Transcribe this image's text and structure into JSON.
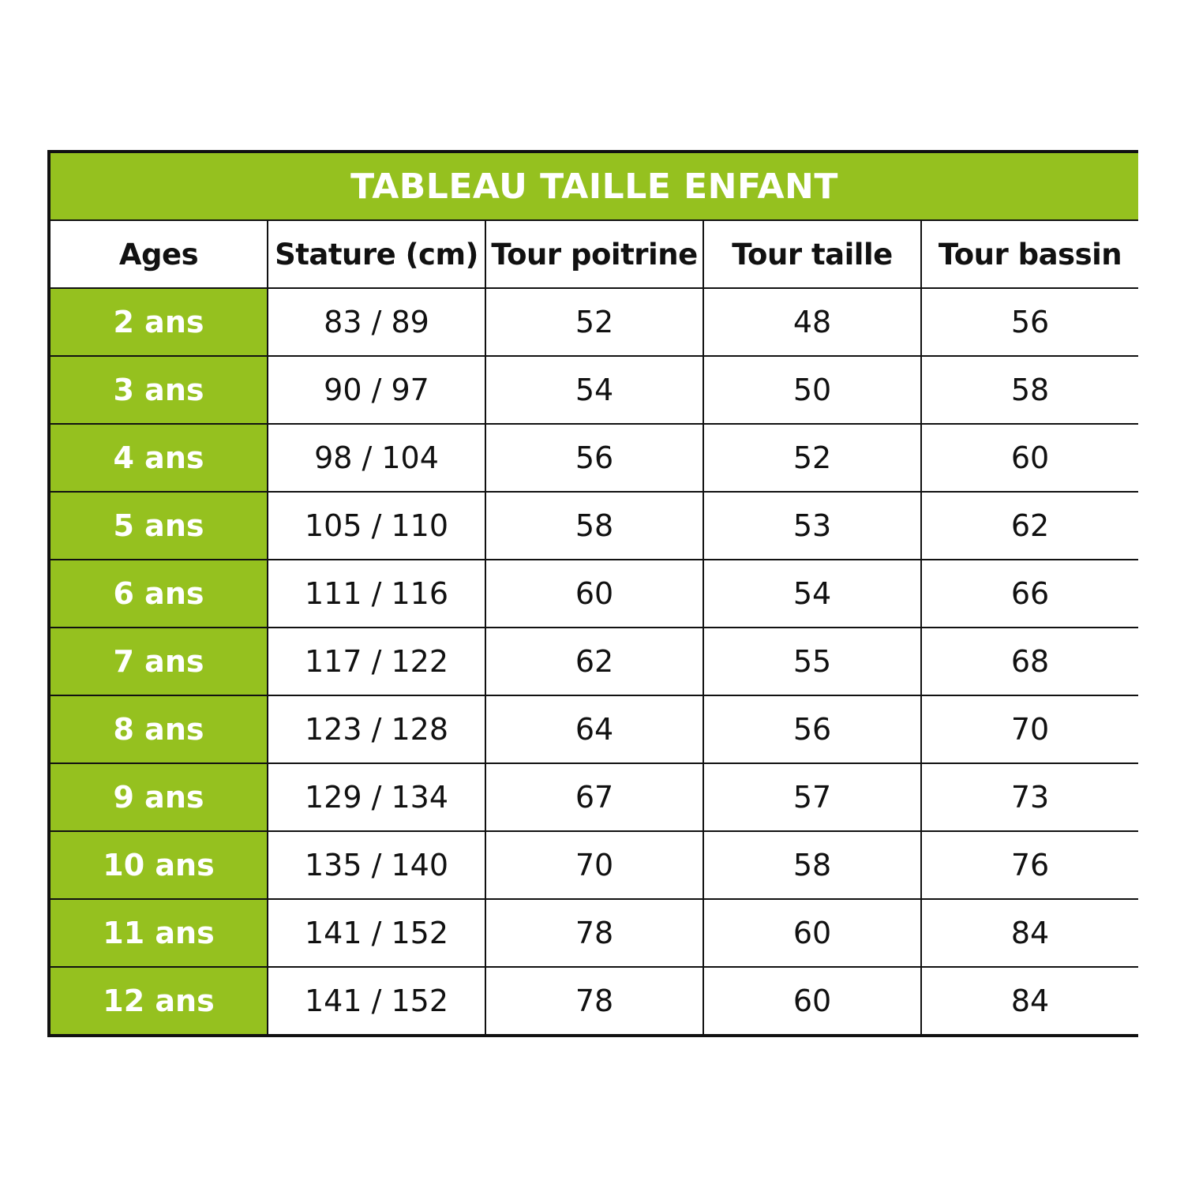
{
  "title": "TABLEAU TAILLE ENFANT",
  "accent_color": "#95c11f",
  "headers": [
    "Ages",
    "Stature (cm)",
    "Tour poitrine",
    "Tour taille",
    "Tour bassin"
  ],
  "rows": [
    [
      "2 ans",
      "83 / 89",
      "52",
      "48",
      "56"
    ],
    [
      "3 ans",
      "90 / 97",
      "54",
      "50",
      "58"
    ],
    [
      "4 ans",
      "98 / 104",
      "56",
      "52",
      "60"
    ],
    [
      "5 ans",
      "105 / 110",
      "58",
      "53",
      "62"
    ],
    [
      "6 ans",
      "111 / 116",
      "60",
      "54",
      "66"
    ],
    [
      "7 ans",
      "117 / 122",
      "62",
      "55",
      "68"
    ],
    [
      "8 ans",
      "123 / 128",
      "64",
      "56",
      "70"
    ],
    [
      "9 ans",
      "129 / 134",
      "67",
      "57",
      "73"
    ],
    [
      "10 ans",
      "135 / 140",
      "70",
      "58",
      "76"
    ],
    [
      "11 ans",
      "141 / 152",
      "78",
      "60",
      "84"
    ],
    [
      "12 ans",
      "141 / 152",
      "78",
      "60",
      "84"
    ]
  ]
}
